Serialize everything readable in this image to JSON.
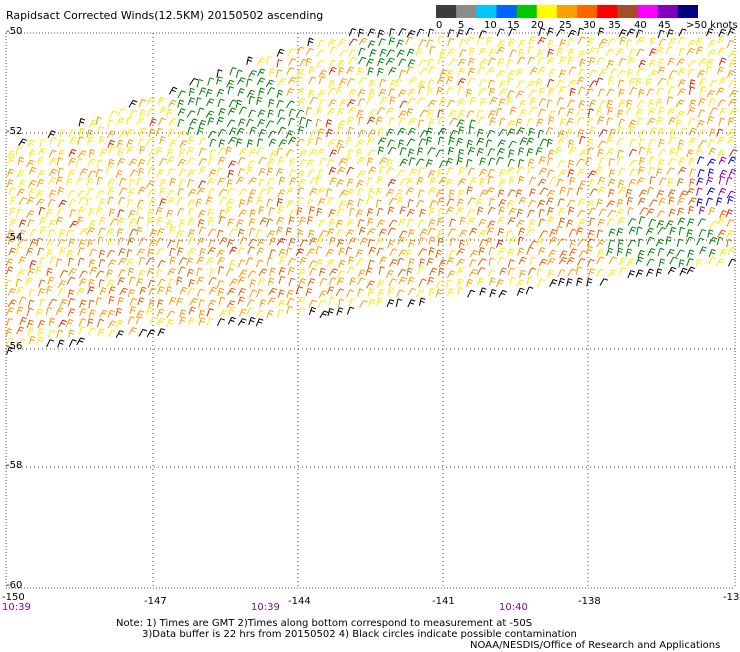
{
  "title": "Rapidsact Corrected Winds(12.5KM) 20150502 ascending",
  "legend": {
    "labels": [
      "0",
      "5",
      "10",
      "15",
      "20",
      "25",
      "30",
      "35",
      "40",
      "45",
      ">50 knots"
    ],
    "colors": [
      "#3c3c3c",
      "#8c8c8c",
      "#00c8ff",
      "#0064ff",
      "#00c800",
      "#ffff00",
      "#ffa000",
      "#ff6400",
      "#ff0000",
      "#a05028",
      "#ff00ff",
      "#8000c0",
      "#000080"
    ]
  },
  "latitude_labels": [
    "-50",
    "-52",
    "-54",
    "-56",
    "-58",
    "-60"
  ],
  "longitude_labels": [
    "-150",
    "-147",
    "-144",
    "-141",
    "-138",
    "-13"
  ],
  "time_labels": [
    "10:39",
    "10:39",
    "10:40"
  ],
  "notes": [
    "Note: 1) Times are GMT 2)Times along bottom correspond to measurement at -50S",
    "3)Data buffer is 22 hrs from 20150502 4) Black circles indicate possible contamination",
    "NOAA/NESDIS/Office of Research and Applications"
  ],
  "swath": {
    "lat_range": [
      -50,
      -56.4
    ],
    "lon_range": [
      -150,
      -135
    ],
    "dominant_wind_knots": "20-30",
    "barb_colors": {
      "calm_edge": "#000000",
      "green": "#008000",
      "yellow": "#ffe800",
      "orange": "#ff9900",
      "dark_orange": "#e06000",
      "red": "#dd2200",
      "purple": "#a000a0",
      "blue": "#0000cc"
    }
  }
}
